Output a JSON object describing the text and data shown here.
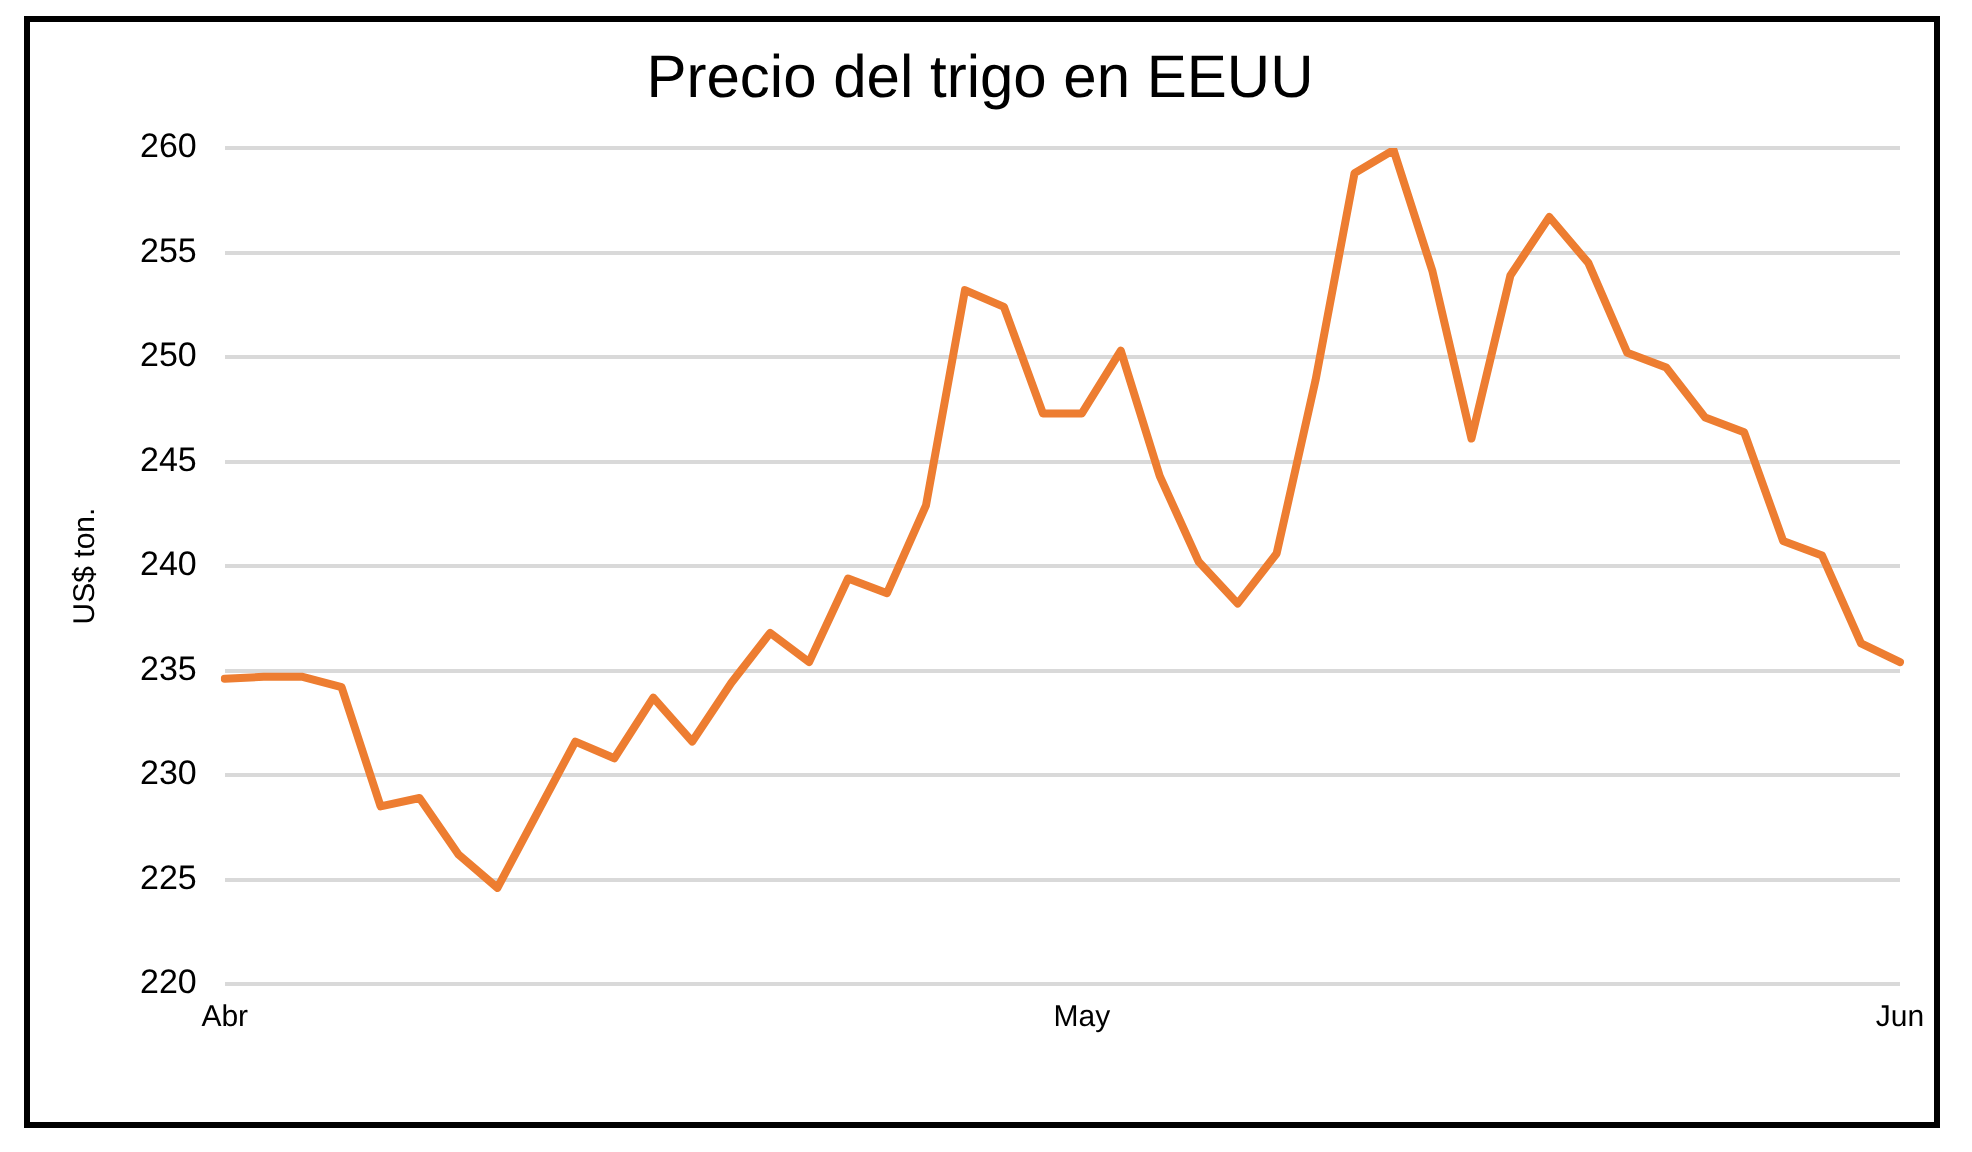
{
  "chart_data": {
    "type": "line",
    "title": "Precio del trigo en EEUU",
    "ylabel": "US$ ton.",
    "categories": [
      "Abr",
      null,
      null,
      null,
      null,
      null,
      null,
      null,
      null,
      null,
      null,
      null,
      null,
      null,
      null,
      null,
      null,
      null,
      null,
      null,
      null,
      null,
      "May",
      null,
      null,
      null,
      null,
      null,
      null,
      null,
      null,
      null,
      null,
      null,
      null,
      null,
      null,
      null,
      null,
      null,
      null,
      null,
      null,
      "Jun"
    ],
    "series": [
      {
        "color": "#ed7d31",
        "values": [
          234.6,
          234.7,
          234.7,
          234.2,
          228.5,
          228.9,
          226.2,
          224.6,
          228.1,
          231.6,
          230.8,
          233.7,
          231.6,
          234.4,
          236.8,
          235.4,
          239.4,
          238.7,
          242.9,
          253.2,
          252.4,
          247.3,
          247.3,
          250.3,
          244.3,
          240.2,
          238.2,
          240.6,
          248.9,
          258.8,
          259.9,
          254.1,
          246.1,
          253.9,
          256.7,
          254.5,
          250.2,
          249.5,
          247.1,
          246.4,
          241.2,
          240.5,
          236.3,
          235.4
        ]
      }
    ],
    "ylim": [
      220,
      260
    ],
    "yticks": [
      220,
      225,
      230,
      235,
      240,
      245,
      250,
      255,
      260
    ],
    "grid": "y",
    "legend": false,
    "marker": "none",
    "line_style": "solid"
  }
}
